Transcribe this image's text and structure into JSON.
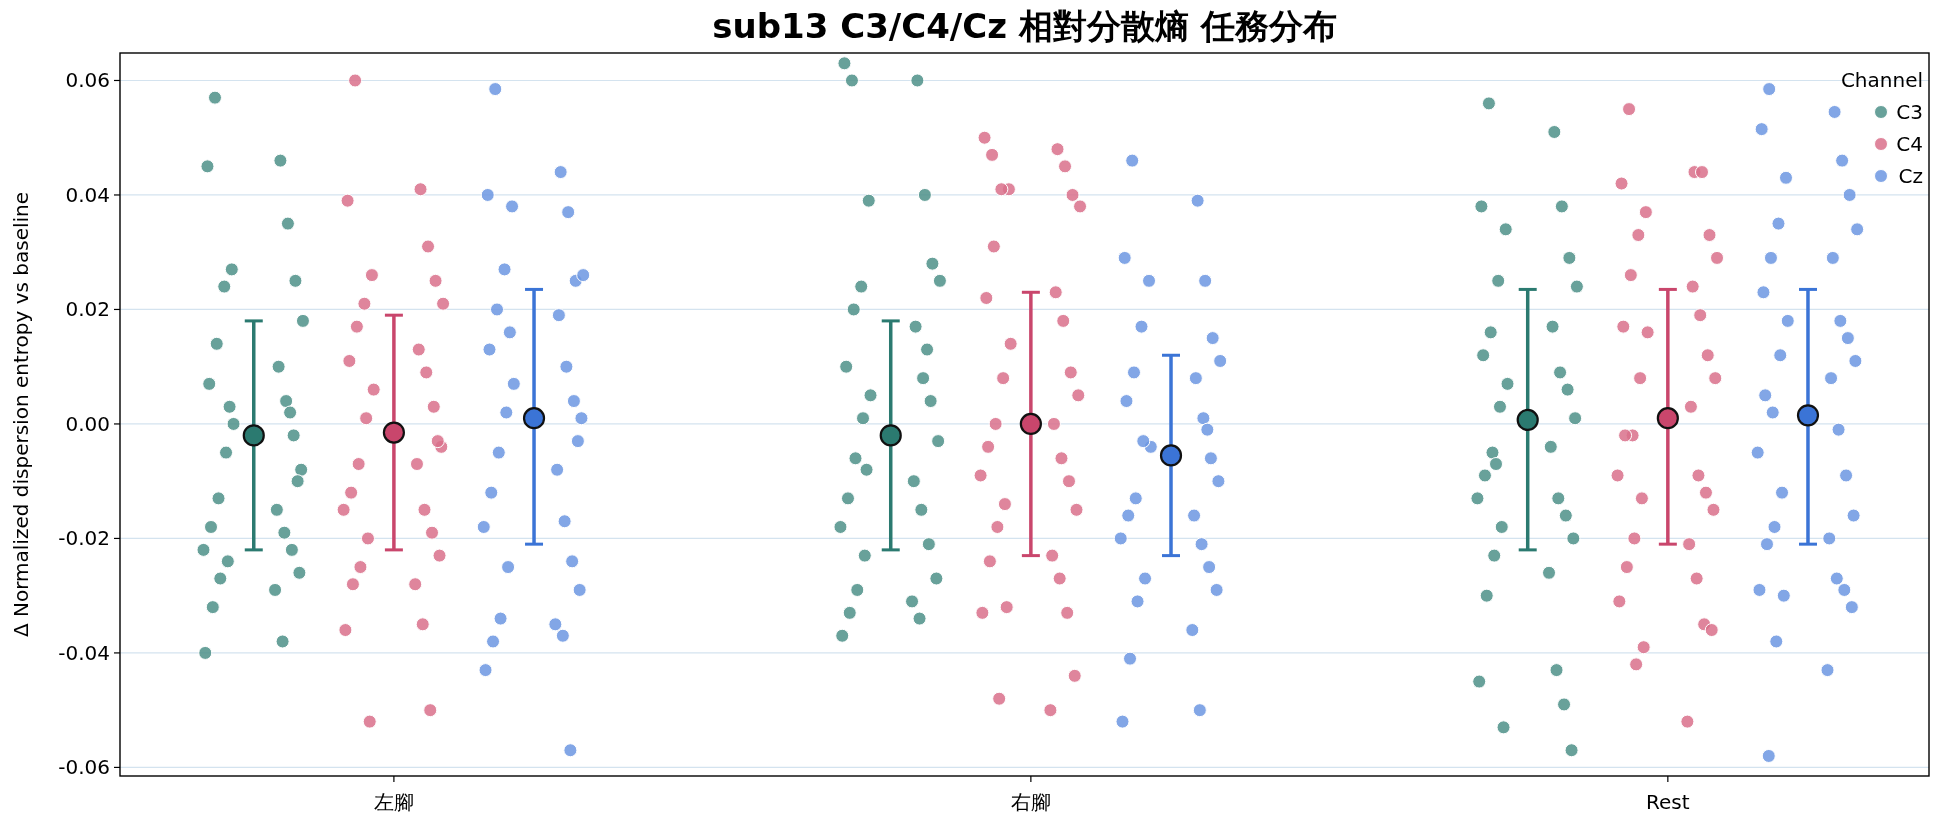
{
  "chart_data": {
    "type": "scatter",
    "title": "sub13 C3/C4/Cz 相對分散熵 任務分布",
    "ylabel": "Δ Normalized dispersion entropy vs baseline",
    "legend_title": "Channel",
    "legend": "top right",
    "grid": "y",
    "marker": "circle",
    "categories": [
      "左腳",
      "右腳",
      "Rest"
    ],
    "ylim": [
      -0.0615,
      0.0648
    ],
    "yticks": [
      {
        "value": -0.06,
        "label": "-0.06"
      },
      {
        "value": -0.04,
        "label": "-0.04"
      },
      {
        "value": -0.02,
        "label": "-0.02"
      },
      {
        "value": 0,
        "label": "0.00"
      },
      {
        "value": 0.02,
        "label": "0.02"
      },
      {
        "value": 0.04,
        "label": "0.04"
      },
      {
        "value": 0.06,
        "label": "0.06"
      }
    ],
    "series": [
      {
        "name": "C3",
        "color": "#4e9088",
        "x": [
          "左腳",
          "左腳",
          "左腳",
          "左腳",
          "左腳",
          "左腳",
          "左腳",
          "左腳",
          "左腳",
          "左腳",
          "左腳",
          "左腳",
          "左腳",
          "左腳",
          "左腳",
          "左腳",
          "左腳",
          "左腳",
          "左腳",
          "左腳",
          "左腳",
          "左腳",
          "左腳",
          "左腳",
          "左腳",
          "左腳",
          "左腳",
          "左腳",
          "左腳",
          "左腳",
          "左腳",
          "左腳",
          "右腳",
          "右腳",
          "右腳",
          "右腳",
          "右腳",
          "右腳",
          "右腳",
          "右腳",
          "右腳",
          "右腳",
          "右腳",
          "右腳",
          "右腳",
          "右腳",
          "右腳",
          "右腳",
          "右腳",
          "右腳",
          "右腳",
          "右腳",
          "右腳",
          "右腳",
          "右腳",
          "右腳",
          "右腳",
          "右腳",
          "右腳",
          "右腳",
          "右腳",
          "右腳",
          "右腳",
          "Rest",
          "Rest",
          "Rest",
          "Rest",
          "Rest",
          "Rest",
          "Rest",
          "Rest",
          "Rest",
          "Rest",
          "Rest",
          "Rest",
          "Rest",
          "Rest",
          "Rest",
          "Rest",
          "Rest",
          "Rest",
          "Rest",
          "Rest",
          "Rest",
          "Rest",
          "Rest",
          "Rest",
          "Rest",
          "Rest",
          "Rest",
          "Rest",
          "Rest",
          "Rest",
          "Rest",
          "Rest",
          "Rest"
        ],
        "values": [
          0.057,
          0.046,
          0.045,
          0.035,
          0.027,
          0.025,
          0.024,
          0.018,
          0.014,
          0.01,
          0.007,
          0.004,
          0.0,
          -0.002,
          -0.005,
          -0.008,
          -0.013,
          -0.015,
          -0.018,
          -0.019,
          -0.022,
          -0.022,
          -0.024,
          -0.026,
          -0.027,
          -0.029,
          -0.032,
          -0.038,
          -0.04,
          0.002,
          0.003,
          -0.01,
          0.06,
          0.06,
          0.063,
          0.04,
          0.039,
          0.028,
          0.024,
          0.025,
          0.02,
          0.017,
          0.01,
          0.008,
          0.005,
          0.004,
          0.001,
          -0.003,
          -0.006,
          -0.01,
          -0.013,
          -0.015,
          -0.018,
          -0.021,
          -0.023,
          -0.027,
          -0.029,
          -0.031,
          -0.033,
          -0.034,
          -0.037,
          0.013,
          -0.008,
          0.056,
          0.051,
          0.038,
          0.038,
          0.034,
          0.029,
          0.025,
          0.024,
          0.016,
          0.017,
          0.012,
          0.009,
          0.007,
          0.006,
          0.003,
          0.001,
          -0.005,
          -0.004,
          -0.009,
          -0.013,
          -0.013,
          -0.016,
          -0.018,
          -0.02,
          -0.023,
          -0.026,
          -0.03,
          -0.043,
          -0.045,
          -0.049,
          -0.053,
          -0.057,
          -0.007
        ]
      },
      {
        "name": "C4",
        "color": "#d9708b",
        "x": [
          "左腳",
          "左腳",
          "左腳",
          "左腳",
          "左腳",
          "左腳",
          "左腳",
          "左腳",
          "左腳",
          "左腳",
          "左腳",
          "左腳",
          "左腳",
          "左腳",
          "左腳",
          "左腳",
          "左腳",
          "左腳",
          "左腳",
          "左腳",
          "左腳",
          "左腳",
          "左腳",
          "左腳",
          "左腳",
          "左腳",
          "左腳",
          "左腳",
          "左腳",
          "左腳",
          "左腳",
          "左腳",
          "右腳",
          "右腳",
          "右腳",
          "右腳",
          "右腳",
          "右腳",
          "右腳",
          "右腳",
          "右腳",
          "右腳",
          "右腳",
          "右腳",
          "右腳",
          "右腳",
          "右腳",
          "右腳",
          "右腳",
          "右腳",
          "右腳",
          "右腳",
          "右腳",
          "右腳",
          "右腳",
          "右腳",
          "右腳",
          "右腳",
          "右腳",
          "右腳",
          "右腳",
          "右腳",
          "右腳",
          "右腳",
          "右腳",
          "右腳",
          "Rest",
          "Rest",
          "Rest",
          "Rest",
          "Rest",
          "Rest",
          "Rest",
          "Rest",
          "Rest",
          "Rest",
          "Rest",
          "Rest",
          "Rest",
          "Rest",
          "Rest",
          "Rest",
          "Rest",
          "Rest",
          "Rest",
          "Rest",
          "Rest",
          "Rest",
          "Rest",
          "Rest",
          "Rest",
          "Rest",
          "Rest",
          "Rest",
          "Rest",
          "Rest",
          "Rest",
          "Rest",
          "Rest",
          "Rest"
        ],
        "values": [
          0.06,
          0.041,
          0.039,
          0.031,
          0.026,
          0.025,
          0.021,
          0.021,
          0.017,
          0.013,
          0.011,
          0.009,
          0.006,
          0.003,
          0.001,
          -0.004,
          -0.007,
          -0.007,
          -0.012,
          -0.015,
          -0.015,
          -0.019,
          -0.02,
          -0.023,
          -0.025,
          -0.028,
          -0.028,
          -0.035,
          -0.036,
          -0.05,
          -0.052,
          -0.003,
          0.047,
          0.048,
          0.05,
          0.045,
          0.041,
          0.04,
          0.041,
          0.038,
          0.031,
          0.023,
          0.022,
          0.018,
          0.014,
          0.009,
          0.008,
          0.005,
          0.0,
          0.0,
          -0.004,
          -0.006,
          -0.009,
          -0.01,
          -0.014,
          -0.015,
          -0.018,
          -0.023,
          -0.024,
          -0.027,
          -0.033,
          -0.033,
          -0.032,
          -0.044,
          -0.048,
          -0.05,
          0.055,
          0.044,
          0.042,
          0.044,
          0.037,
          0.033,
          0.033,
          0.029,
          0.026,
          0.024,
          0.017,
          0.019,
          0.016,
          0.012,
          0.008,
          0.008,
          -0.002,
          0.003,
          -0.002,
          -0.009,
          -0.009,
          -0.012,
          -0.013,
          -0.015,
          -0.02,
          -0.021,
          -0.025,
          -0.027,
          -0.031,
          -0.035,
          -0.039,
          -0.036,
          -0.042,
          -0.052
        ]
      },
      {
        "name": "Cz",
        "color": "#6c97e2",
        "x": [
          "左腳",
          "左腳",
          "左腳",
          "左腳",
          "左腳",
          "左腳",
          "左腳",
          "左腳",
          "左腳",
          "左腳",
          "左腳",
          "左腳",
          "左腳",
          "左腳",
          "左腳",
          "左腳",
          "左腳",
          "左腳",
          "左腳",
          "左腳",
          "左腳",
          "左腳",
          "左腳",
          "左腳",
          "左腳",
          "左腳",
          "左腳",
          "左腳",
          "左腳",
          "左腳",
          "左腳",
          "左腳",
          "右腳",
          "右腳",
          "右腳",
          "右腳",
          "右腳",
          "右腳",
          "右腳",
          "右腳",
          "右腳",
          "右腳",
          "右腳",
          "右腳",
          "右腳",
          "右腳",
          "右腳",
          "右腳",
          "右腳",
          "右腳",
          "右腳",
          "右腳",
          "右腳",
          "右腳",
          "右腳",
          "右腳",
          "右腳",
          "右腳",
          "右腳",
          "右腳",
          "右腳",
          "右腳",
          "Rest",
          "Rest",
          "Rest",
          "Rest",
          "Rest",
          "Rest",
          "Rest",
          "Rest",
          "Rest",
          "Rest",
          "Rest",
          "Rest",
          "Rest",
          "Rest",
          "Rest",
          "Rest",
          "Rest",
          "Rest",
          "Rest",
          "Rest",
          "Rest",
          "Rest",
          "Rest",
          "Rest",
          "Rest",
          "Rest",
          "Rest",
          "Rest",
          "Rest",
          "Rest",
          "Rest",
          "Rest",
          "Rest",
          "Rest",
          "Rest"
        ],
        "values": [
          0.0585,
          0.044,
          0.04,
          0.037,
          0.038,
          0.025,
          0.027,
          0.026,
          0.02,
          0.019,
          0.013,
          0.01,
          0.007,
          0.004,
          0.002,
          0.001,
          -0.005,
          -0.008,
          -0.012,
          -0.017,
          -0.018,
          -0.024,
          -0.025,
          -0.029,
          -0.034,
          -0.035,
          -0.038,
          -0.037,
          -0.043,
          -0.057,
          0.016,
          -0.003,
          0.046,
          0.039,
          0.029,
          0.025,
          0.025,
          0.015,
          0.017,
          0.011,
          0.009,
          0.008,
          0.004,
          0.001,
          -0.004,
          -0.006,
          -0.003,
          -0.01,
          -0.013,
          -0.016,
          -0.016,
          -0.021,
          -0.02,
          -0.025,
          -0.027,
          -0.029,
          -0.031,
          -0.036,
          -0.041,
          -0.05,
          -0.052,
          -0.001,
          0.0585,
          0.0545,
          0.0515,
          0.046,
          0.043,
          0.04,
          0.035,
          0.034,
          0.029,
          0.029,
          0.023,
          0.018,
          0.018,
          0.015,
          0.012,
          0.011,
          0.002,
          0.008,
          0.005,
          -0.001,
          -0.005,
          -0.009,
          -0.012,
          -0.016,
          -0.018,
          -0.02,
          -0.021,
          -0.027,
          -0.029,
          -0.029,
          -0.03,
          -0.032,
          -0.038,
          -0.043,
          -0.058
        ]
      },
      {
        "color": "#2b7a70",
        "x": [
          "左腳",
          "右腳",
          "Rest"
        ],
        "values": [
          -0.002,
          -0.002,
          0.0007
        ],
        "errors": [
          [
            -0.022,
            0.018
          ],
          [
            -0.022,
            0.018
          ],
          [
            -0.022,
            0.0235
          ]
        ]
      },
      {
        "color": "#c9466c",
        "x": [
          "左腳",
          "右腳",
          "Rest"
        ],
        "values": [
          -0.0015,
          0.0,
          0.001
        ],
        "errors": [
          [
            -0.022,
            0.019
          ],
          [
            -0.023,
            0.023
          ],
          [
            -0.021,
            0.0235
          ]
        ]
      },
      {
        "color": "#3b74d6",
        "x": [
          "左腳",
          "右腳",
          "Rest"
        ],
        "values": [
          0.001,
          -0.0055,
          0.0015
        ],
        "errors": [
          [
            -0.021,
            0.0235
          ],
          [
            -0.023,
            0.012
          ],
          [
            -0.021,
            0.0235
          ]
        ]
      }
    ]
  }
}
